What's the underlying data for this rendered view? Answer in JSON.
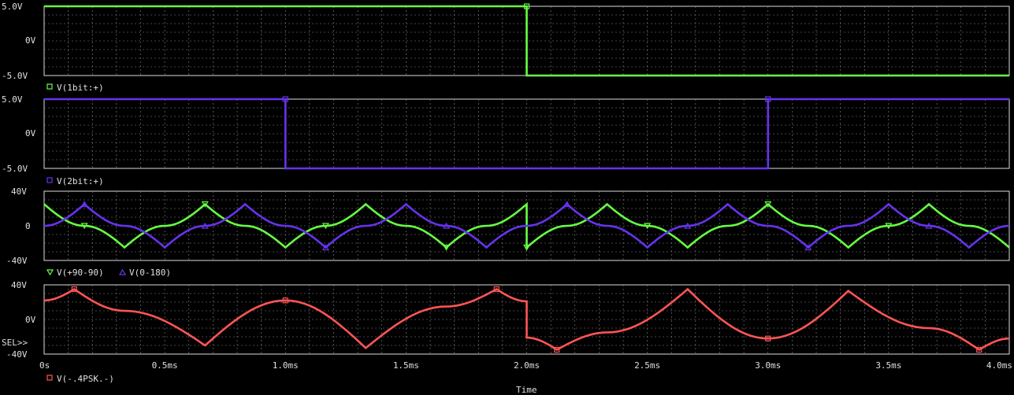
{
  "chart_data": [
    {
      "type": "line",
      "x_unit": "ms",
      "xlim": [
        0,
        4.0
      ],
      "ylim": [
        -5,
        5
      ],
      "ytick_labels": [
        "5.0V",
        "0V",
        "-5.0V"
      ],
      "yticks": [
        5,
        0,
        -5
      ],
      "series": [
        {
          "name": "V(1bit:+)",
          "color": "#66ff44",
          "marker": "square",
          "x": [
            0,
            2.0,
            2.0,
            4.0
          ],
          "y": [
            5,
            5,
            -5,
            -5
          ]
        }
      ]
    },
    {
      "type": "line",
      "x_unit": "ms",
      "xlim": [
        0,
        4.0
      ],
      "ylim": [
        -5,
        5
      ],
      "ytick_labels": [
        "5.0V",
        "0V",
        "-5.0V"
      ],
      "yticks": [
        5,
        0,
        -5
      ],
      "series": [
        {
          "name": "V(2bit:+)",
          "color": "#6633ee",
          "marker": "square",
          "x": [
            0,
            1.0,
            1.0,
            3.0,
            3.0,
            4.0
          ],
          "y": [
            5,
            5,
            -5,
            -5,
            5,
            5
          ]
        }
      ]
    },
    {
      "type": "line",
      "x_unit": "ms",
      "xlim": [
        0,
        4.0
      ],
      "ylim": [
        -40,
        40
      ],
      "ytick_labels": [
        "40V",
        "0",
        "-40V"
      ],
      "yticks": [
        40,
        0,
        -40
      ],
      "series": [
        {
          "name": "V(+90-90)",
          "color": "#66ff44",
          "marker": "triangle-down",
          "x": [
            0,
            0.167,
            0.333,
            0.5,
            0.667,
            0.833,
            1.0,
            1.167,
            1.333,
            1.5,
            1.667,
            1.833,
            2.0,
            2.0,
            2.167,
            2.333,
            2.5,
            2.667,
            2.833,
            3.0,
            3.167,
            3.333,
            3.5,
            3.667,
            3.833,
            4.0
          ],
          "y": [
            25,
            0,
            -25,
            0,
            25,
            0,
            -25,
            0,
            25,
            0,
            -25,
            0,
            25,
            -25,
            0,
            25,
            0,
            -25,
            0,
            25,
            0,
            -25,
            0,
            25,
            0,
            -25
          ]
        },
        {
          "name": "V(0-180)",
          "color": "#6633ee",
          "marker": "triangle-up",
          "x": [
            0,
            0.167,
            0.333,
            0.5,
            0.667,
            0.833,
            1.0,
            1.167,
            1.333,
            1.5,
            1.667,
            1.833,
            2.0,
            2.167,
            2.333,
            2.5,
            2.667,
            2.833,
            3.0,
            3.167,
            3.333,
            3.5,
            3.667,
            3.833,
            4.0
          ],
          "y": [
            0,
            25,
            0,
            -25,
            0,
            25,
            0,
            -25,
            0,
            25,
            0,
            -25,
            0,
            25,
            0,
            -25,
            0,
            25,
            0,
            -25,
            0,
            25,
            0,
            -25,
            0
          ]
        }
      ]
    },
    {
      "type": "line",
      "x_unit": "ms",
      "xlim": [
        0,
        4.0
      ],
      "ylim": [
        -40,
        40
      ],
      "ytick_labels": [
        "40V",
        "0V",
        "-40V"
      ],
      "yticks": [
        40,
        0,
        -40
      ],
      "selector_label": "SEL>>",
      "series": [
        {
          "name": "V(-.4PSK.-)",
          "color": "#ff5555",
          "marker": "square",
          "x": [
            0,
            0.125,
            0.333,
            0.667,
            1.0,
            1.333,
            1.667,
            1.875,
            2.0,
            2.0,
            2.125,
            2.333,
            2.667,
            3.0,
            3.333,
            3.667,
            3.875,
            4.0
          ],
          "y": [
            22,
            35,
            10,
            -30,
            22,
            -33,
            15,
            35,
            21,
            -21,
            -35,
            -15,
            35,
            -22,
            33,
            -10,
            -35,
            -22
          ]
        }
      ]
    }
  ],
  "x_tick_labels": [
    "0s",
    "0.5ms",
    "1.0ms",
    "1.5ms",
    "2.0ms",
    "2.5ms",
    "3.0ms",
    "3.5ms",
    "4.0ms"
  ],
  "xlabel": "Time",
  "legends": [
    "V(1bit:+)",
    "V(2bit:+)",
    "V(+90-90)",
    "V(0-180)",
    "V(-.4PSK.-)"
  ]
}
